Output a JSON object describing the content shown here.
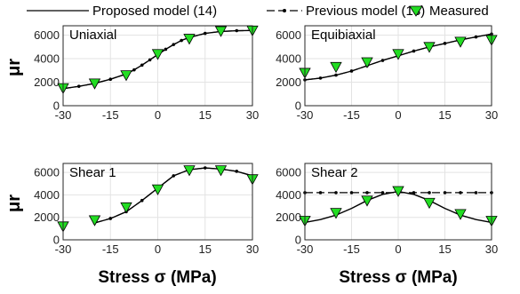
{
  "legend": {
    "items": [
      {
        "label": "Proposed model (14)",
        "style": "solid-line",
        "color": "#000000"
      },
      {
        "label": "Previous model (13)",
        "style": "dash-dot-line",
        "color": "#000000"
      },
      {
        "label": "Measured",
        "style": "marker-triangle-down",
        "color": "#22dd22"
      }
    ]
  },
  "ylabel": "μr",
  "xlabel": "Stress σ (MPa)",
  "chart_data": [
    {
      "type": "line",
      "title": "Uniaxial",
      "xlim": [
        -30,
        30
      ],
      "ylim": [
        0,
        6800
      ],
      "xticks": [
        "-30",
        "-15",
        "0",
        "15",
        "30"
      ],
      "yticks": [
        "0",
        "2000",
        "4000",
        "6000"
      ],
      "grid": true,
      "series": [
        {
          "name": "Proposed model (14)",
          "style": "solid",
          "x": [
            -30,
            -25,
            -20,
            -15,
            -10,
            -7.5,
            -5,
            -2.5,
            0,
            2.5,
            5,
            7.5,
            10,
            15,
            20,
            25,
            30
          ],
          "y": [
            1450,
            1650,
            1900,
            2250,
            2700,
            3050,
            3450,
            3900,
            4350,
            4800,
            5200,
            5550,
            5800,
            6150,
            6320,
            6380,
            6400
          ]
        },
        {
          "name": "Previous model (13)",
          "style": "dash-dot",
          "x": [
            -30,
            -25,
            -20,
            -15,
            -10,
            -7.5,
            -5,
            -2.5,
            0,
            2.5,
            5,
            7.5,
            10,
            15,
            20,
            25,
            30
          ],
          "y": [
            1450,
            1650,
            1900,
            2250,
            2700,
            3050,
            3450,
            3900,
            4350,
            4800,
            5200,
            5550,
            5800,
            6150,
            6320,
            6380,
            6400
          ]
        },
        {
          "name": "Measured",
          "style": "marker",
          "x": [
            -30,
            -20,
            -10,
            0,
            10,
            20,
            30
          ],
          "y": [
            1500,
            1900,
            2600,
            4400,
            5700,
            6350,
            6400
          ]
        }
      ]
    },
    {
      "type": "line",
      "title": "Equibiaxial",
      "xlim": [
        -30,
        30
      ],
      "ylim": [
        0,
        6800
      ],
      "xticks": [
        "-30",
        "-15",
        "0",
        "15",
        "30"
      ],
      "yticks": [
        "0",
        "2000",
        "4000",
        "6000"
      ],
      "grid": true,
      "series": [
        {
          "name": "Proposed model (14)",
          "style": "solid",
          "x": [
            -30,
            -25,
            -20,
            -15,
            -10,
            -5,
            0,
            5,
            10,
            15,
            20,
            25,
            30
          ],
          "y": [
            2200,
            2350,
            2600,
            2950,
            3400,
            3850,
            4250,
            4650,
            5000,
            5300,
            5600,
            5850,
            6100
          ]
        },
        {
          "name": "Previous model (13)",
          "style": "dash-dot",
          "x": [
            -30,
            -25,
            -20,
            -15,
            -10,
            -5,
            0,
            5,
            10,
            15,
            20,
            25,
            30
          ],
          "y": [
            2200,
            2350,
            2600,
            2950,
            3400,
            3850,
            4250,
            4650,
            5000,
            5300,
            5600,
            5850,
            6100
          ]
        },
        {
          "name": "Measured",
          "style": "marker",
          "x": [
            -30,
            -20,
            -10,
            0,
            10,
            20,
            30
          ],
          "y": [
            2800,
            3300,
            3700,
            4400,
            5000,
            5450,
            5600
          ]
        }
      ]
    },
    {
      "type": "line",
      "title": "Shear 1",
      "xlim": [
        -30,
        30
      ],
      "ylim": [
        0,
        6800
      ],
      "xticks": [
        "-30",
        "-15",
        "0",
        "15",
        "30"
      ],
      "yticks": [
        "0",
        "2000",
        "4000",
        "6000"
      ],
      "grid": true,
      "series": [
        {
          "name": "Proposed model (14)",
          "style": "solid",
          "x": [
            -20,
            -15,
            -10,
            -5,
            0,
            5,
            10,
            15,
            20,
            25,
            30
          ],
          "y": [
            1500,
            1900,
            2500,
            3500,
            4600,
            5700,
            6250,
            6400,
            6300,
            6100,
            5700
          ]
        },
        {
          "name": "Previous model (13)",
          "style": "dash-dot",
          "x": [
            -20,
            -15,
            -10,
            -5,
            0,
            5,
            10,
            15,
            20,
            25,
            30
          ],
          "y": [
            1500,
            1900,
            2500,
            3500,
            4600,
            5700,
            6250,
            6400,
            6300,
            6100,
            5700
          ]
        },
        {
          "name": "Measured",
          "style": "marker",
          "x": [
            -30,
            -20,
            -10,
            0,
            10,
            20,
            30
          ],
          "y": [
            1200,
            1750,
            2900,
            4500,
            6200,
            6200,
            5400
          ]
        }
      ]
    },
    {
      "type": "line",
      "title": "Shear 2",
      "xlim": [
        -30,
        30
      ],
      "ylim": [
        0,
        6800
      ],
      "xticks": [
        "-30",
        "-15",
        "0",
        "15",
        "30"
      ],
      "yticks": [
        "0",
        "2000",
        "4000",
        "6000"
      ],
      "grid": true,
      "series": [
        {
          "name": "Proposed model (14)",
          "style": "solid",
          "x": [
            -30,
            -25,
            -20,
            -15,
            -10,
            -5,
            0,
            5,
            10,
            15,
            20,
            25,
            30
          ],
          "y": [
            1550,
            1800,
            2200,
            2800,
            3500,
            4050,
            4300,
            4050,
            3500,
            2800,
            2200,
            1800,
            1550
          ]
        },
        {
          "name": "Previous model (13)",
          "style": "dash-dot",
          "x": [
            -30,
            -25,
            -20,
            -15,
            -10,
            -5,
            0,
            5,
            10,
            15,
            20,
            25,
            30
          ],
          "y": [
            4200,
            4200,
            4200,
            4200,
            4200,
            4200,
            4200,
            4200,
            4200,
            4200,
            4200,
            4200,
            4200
          ]
        },
        {
          "name": "Measured",
          "style": "marker",
          "x": [
            -30,
            -20,
            -10,
            0,
            10,
            20,
            30
          ],
          "y": [
            1700,
            2400,
            3500,
            4350,
            3300,
            2300,
            1700
          ]
        }
      ]
    }
  ]
}
